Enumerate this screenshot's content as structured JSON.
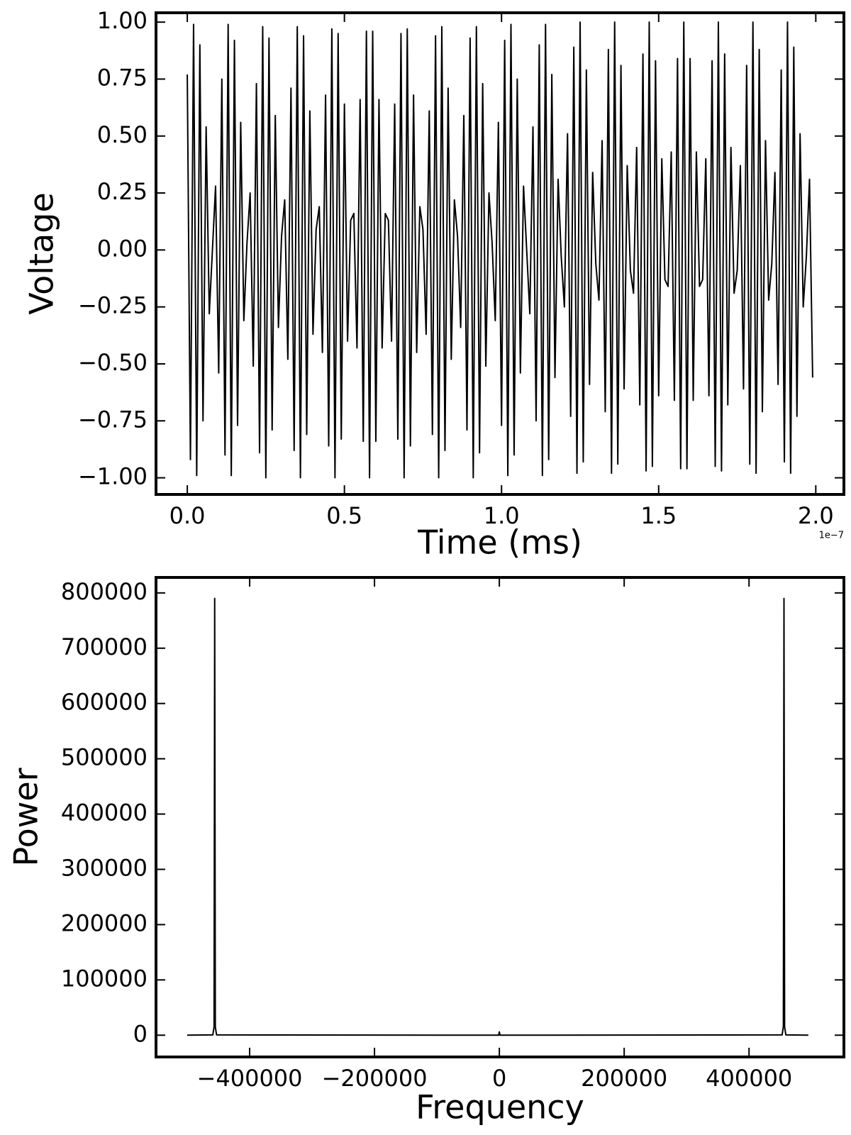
{
  "chart_data": [
    {
      "type": "line",
      "xlabel": "Time (ms)",
      "ylabel": "Voltage",
      "x_offset_label": "1e−7",
      "color": "#000000",
      "grid": false,
      "xlim": [
        -9.95e-09,
        2.0895e-07
      ],
      "xticks": [
        {
          "value": 0,
          "label": "0.0"
        },
        {
          "value": 5e-08,
          "label": "0.5"
        },
        {
          "value": 1e-07,
          "label": "1.0"
        },
        {
          "value": 1.5e-07,
          "label": "1.5"
        },
        {
          "value": 2e-07,
          "label": "2.0"
        }
      ],
      "ylim": [
        -1.073,
        1.041
      ],
      "yticks": [
        {
          "value": -1,
          "label": "−1.00"
        },
        {
          "value": -0.75,
          "label": "−0.75"
        },
        {
          "value": -0.5,
          "label": "−0.50"
        },
        {
          "value": -0.25,
          "label": "−0.25"
        },
        {
          "value": 0,
          "label": "0.00"
        },
        {
          "value": 0.25,
          "label": "0.25"
        },
        {
          "value": 0.5,
          "label": "0.50"
        },
        {
          "value": 0.75,
          "label": "0.75"
        },
        {
          "value": 1,
          "label": "1.00"
        }
      ],
      "x": [
        0,
        1e-09,
        2e-09,
        3e-09,
        4e-09,
        5e-09,
        6e-09,
        7e-09,
        8e-09,
        9e-09,
        1e-08,
        1.1e-08,
        1.2e-08,
        1.3e-08,
        1.4e-08,
        1.5e-08,
        1.6e-08,
        1.7e-08,
        1.8e-08,
        1.9e-08,
        2e-08,
        2.1e-08,
        2.2e-08,
        2.3e-08,
        2.4e-08,
        2.5e-08,
        2.6e-08,
        2.7e-08,
        2.8e-08,
        2.9e-08,
        3e-08,
        3.1e-08,
        3.2e-08,
        3.3e-08,
        3.4e-08,
        3.5e-08,
        3.6e-08,
        3.7e-08,
        3.8e-08,
        3.9e-08,
        4e-08,
        4.1e-08,
        4.2e-08,
        4.3e-08,
        4.4e-08,
        4.5e-08,
        4.6e-08,
        4.7e-08,
        4.8e-08,
        4.9e-08,
        5e-08,
        5.1e-08,
        5.2e-08,
        5.3e-08,
        5.4e-08,
        5.5e-08,
        5.6e-08,
        5.7e-08,
        5.8e-08,
        5.9e-08,
        6e-08,
        6.1e-08,
        6.2e-08,
        6.3e-08,
        6.4e-08,
        6.5e-08,
        6.6e-08,
        6.7e-08,
        6.8e-08,
        6.9e-08,
        7e-08,
        7.1e-08,
        7.2e-08,
        7.3e-08,
        7.4e-08,
        7.5e-08,
        7.6e-08,
        7.7e-08,
        7.8e-08,
        7.9e-08,
        8e-08,
        8.1e-08,
        8.2e-08,
        8.3e-08,
        8.4e-08,
        8.5e-08,
        8.6e-08,
        8.7e-08,
        8.8e-08,
        8.9e-08,
        9e-08,
        9.1e-08,
        9.2e-08,
        9.3e-08,
        9.4e-08,
        9.5e-08,
        9.6e-08,
        9.7e-08,
        9.8e-08,
        9.9e-08,
        1e-07,
        1.01e-07,
        1.02e-07,
        1.03e-07,
        1.04e-07,
        1.05e-07,
        1.06e-07,
        1.07e-07,
        1.08e-07,
        1.09e-07,
        1.1e-07,
        1.11e-07,
        1.12e-07,
        1.13e-07,
        1.14e-07,
        1.15e-07,
        1.16e-07,
        1.17e-07,
        1.18e-07,
        1.19e-07,
        1.2e-07,
        1.21e-07,
        1.22e-07,
        1.23e-07,
        1.24e-07,
        1.25e-07,
        1.26e-07,
        1.27e-07,
        1.28e-07,
        1.29e-07,
        1.3e-07,
        1.31e-07,
        1.32e-07,
        1.33e-07,
        1.34e-07,
        1.35e-07,
        1.36e-07,
        1.37e-07,
        1.38e-07,
        1.39e-07,
        1.4e-07,
        1.41e-07,
        1.42e-07,
        1.43e-07,
        1.44e-07,
        1.45e-07,
        1.46e-07,
        1.47e-07,
        1.48e-07,
        1.49e-07,
        1.5e-07,
        1.51e-07,
        1.52e-07,
        1.53e-07,
        1.54e-07,
        1.55e-07,
        1.56e-07,
        1.57e-07,
        1.58e-07,
        1.59e-07,
        1.6e-07,
        1.61e-07,
        1.62e-07,
        1.63e-07,
        1.64e-07,
        1.65e-07,
        1.66e-07,
        1.67e-07,
        1.68e-07,
        1.69e-07,
        1.7e-07,
        1.71e-07,
        1.72e-07,
        1.73e-07,
        1.74e-07,
        1.75e-07,
        1.76e-07,
        1.77e-07,
        1.78e-07,
        1.79e-07,
        1.8e-07,
        1.81e-07,
        1.82e-07,
        1.83e-07,
        1.84e-07,
        1.85e-07,
        1.86e-07,
        1.87e-07,
        1.88e-07,
        1.89e-07,
        1.9e-07,
        1.91e-07,
        1.92e-07,
        1.93e-07,
        1.94e-07,
        1.95e-07,
        1.96e-07,
        1.97e-07,
        1.98e-07,
        1.99e-07
      ],
      "values": [
        0.77,
        -0.92,
        0.99,
        -0.99,
        0.9,
        -0.75,
        0.54,
        -0.28,
        0.0,
        0.28,
        -0.54,
        0.75,
        -0.9,
        0.99,
        -0.99,
        0.92,
        -0.77,
        0.56,
        -0.31,
        0.03,
        0.25,
        -0.51,
        0.73,
        -0.89,
        0.98,
        -1.0,
        0.93,
        -0.79,
        0.59,
        -0.34,
        0.06,
        0.22,
        -0.48,
        0.71,
        -0.88,
        0.98,
        -1.0,
        0.94,
        -0.81,
        0.61,
        -0.37,
        0.09,
        0.19,
        -0.45,
        0.68,
        -0.86,
        0.97,
        -1.0,
        0.95,
        -0.83,
        0.64,
        -0.4,
        0.13,
        0.16,
        -0.43,
        0.66,
        -0.84,
        0.96,
        -1.0,
        0.96,
        -0.84,
        0.66,
        -0.43,
        0.16,
        0.13,
        -0.4,
        0.64,
        -0.83,
        0.95,
        -1.0,
        0.97,
        -0.86,
        0.68,
        -0.45,
        0.19,
        0.09,
        -0.37,
        0.61,
        -0.81,
        0.94,
        -1.0,
        0.98,
        -0.88,
        0.71,
        -0.48,
        0.22,
        0.06,
        -0.34,
        0.59,
        -0.79,
        0.93,
        -1.0,
        0.98,
        -0.89,
        0.73,
        -0.51,
        0.25,
        0.03,
        -0.31,
        0.56,
        -0.77,
        0.92,
        -0.99,
        0.99,
        -0.9,
        0.75,
        -0.54,
        0.28,
        0.0,
        -0.28,
        0.54,
        -0.75,
        0.9,
        -0.99,
        0.99,
        -0.92,
        0.77,
        -0.56,
        0.31,
        -0.03,
        -0.25,
        0.51,
        -0.73,
        0.89,
        -0.98,
        1.0,
        -0.93,
        0.79,
        -0.59,
        0.34,
        -0.06,
        -0.22,
        0.48,
        -0.71,
        0.88,
        -0.98,
        1.0,
        -0.94,
        0.81,
        -0.61,
        0.37,
        -0.09,
        -0.19,
        0.45,
        -0.68,
        0.86,
        -0.97,
        1.0,
        -0.95,
        0.83,
        -0.64,
        0.4,
        -0.13,
        -0.16,
        0.43,
        -0.66,
        0.84,
        -0.96,
        1.0,
        -0.96,
        0.84,
        -0.66,
        0.43,
        -0.16,
        -0.13,
        0.4,
        -0.64,
        0.83,
        -0.95,
        1.0,
        -0.97,
        0.86,
        -0.68,
        0.45,
        -0.19,
        -0.09,
        0.37,
        -0.61,
        0.81,
        -0.94,
        1.0,
        -0.98,
        0.88,
        -0.71,
        0.48,
        -0.22,
        -0.06,
        0.34,
        -0.59,
        0.79,
        -0.93,
        1.0,
        -0.98,
        0.89,
        -0.73,
        0.51,
        -0.25,
        -0.03,
        0.31,
        -0.56
      ]
    },
    {
      "type": "line",
      "xlabel": "Frequency",
      "ylabel": "Power",
      "color": "#000000",
      "grid": false,
      "xlim": [
        -550000,
        552000
      ],
      "xticks": [
        {
          "value": -400000,
          "label": "−400000"
        },
        {
          "value": -200000,
          "label": "−200000"
        },
        0,
        200000,
        400000
      ],
      "ylim": [
        -39400,
        828000
      ],
      "yticks": [
        0,
        100000,
        200000,
        300000,
        400000,
        500000,
        600000,
        700000,
        800000
      ],
      "x": [
        -500000,
        -459000,
        -457000,
        -456000,
        -455000,
        -453000,
        -1000,
        0,
        1000,
        453000,
        455000,
        456000,
        457000,
        459000,
        495000
      ],
      "values": [
        0,
        500,
        15000,
        790000,
        15000,
        500,
        0,
        6000,
        0,
        500,
        15000,
        790000,
        15000,
        500,
        0
      ]
    }
  ]
}
